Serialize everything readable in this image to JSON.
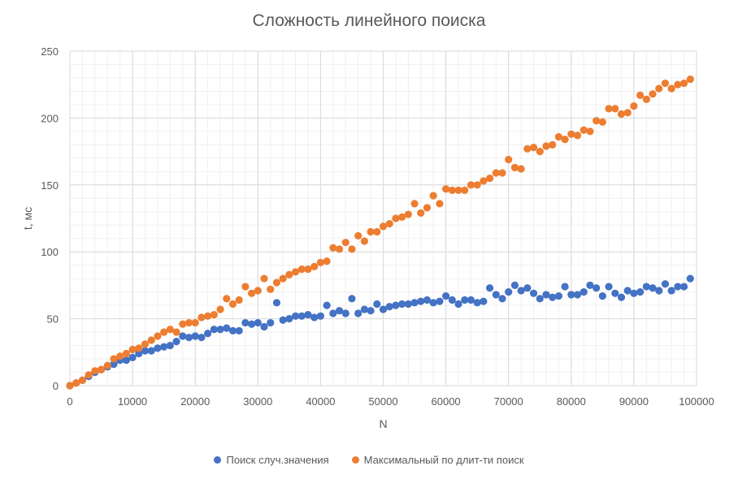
{
  "chart_data": {
    "type": "scatter",
    "title": "Сложность линейного поиска",
    "xlabel": "N",
    "ylabel": "t, мс",
    "xlim": [
      0,
      100000
    ],
    "ylim": [
      0,
      250
    ],
    "x_ticks": [
      "0",
      "10000",
      "20000",
      "30000",
      "40000",
      "50000",
      "60000",
      "70000",
      "80000",
      "90000",
      "100000"
    ],
    "y_ticks": [
      "0",
      "50",
      "100",
      "150",
      "200",
      "250"
    ],
    "grid": true,
    "legend_position": "bottom",
    "series": [
      {
        "name": "Поиск случ.значения",
        "color": "#4472C4",
        "x": [
          0,
          1000,
          2000,
          3000,
          4000,
          5000,
          6000,
          7000,
          8000,
          9000,
          10000,
          11000,
          12000,
          13000,
          14000,
          15000,
          16000,
          17000,
          18000,
          19000,
          20000,
          21000,
          22000,
          23000,
          24000,
          25000,
          26000,
          27000,
          28000,
          29000,
          30000,
          31000,
          32000,
          33000,
          34000,
          35000,
          36000,
          37000,
          38000,
          39000,
          40000,
          41000,
          42000,
          43000,
          44000,
          45000,
          46000,
          47000,
          48000,
          49000,
          50000,
          51000,
          52000,
          53000,
          54000,
          55000,
          56000,
          57000,
          58000,
          59000,
          60000,
          61000,
          62000,
          63000,
          64000,
          65000,
          66000,
          67000,
          68000,
          69000,
          70000,
          71000,
          72000,
          73000,
          74000,
          75000,
          76000,
          77000,
          78000,
          79000,
          80000,
          81000,
          82000,
          83000,
          84000,
          85000,
          86000,
          87000,
          88000,
          89000,
          90000,
          91000,
          92000,
          93000,
          94000,
          95000,
          96000,
          97000,
          98000,
          99000
        ],
        "y": [
          0,
          2,
          4,
          7,
          10,
          12,
          14,
          16,
          19,
          19,
          21,
          24,
          26,
          26,
          28,
          29,
          30,
          33,
          37,
          36,
          37,
          36,
          39,
          42,
          42,
          43,
          41,
          41,
          47,
          46,
          47,
          44,
          47,
          62,
          49,
          50,
          52,
          52,
          53,
          51,
          52,
          60,
          54,
          56,
          54,
          65,
          54,
          57,
          56,
          61,
          57,
          59,
          60,
          61,
          61,
          62,
          63,
          64,
          62,
          63,
          67,
          64,
          61,
          64,
          64,
          62,
          63,
          73,
          68,
          65,
          70,
          75,
          71,
          73,
          69,
          65,
          68,
          66,
          67,
          74,
          68,
          68,
          70,
          75,
          73,
          67,
          74,
          69,
          66,
          71,
          69,
          70,
          74,
          73,
          71,
          76,
          71,
          74,
          74,
          80
        ]
      },
      {
        "name": "Максимальный по длит-ти поиск",
        "color": "#ED7D31",
        "x": [
          0,
          1000,
          2000,
          3000,
          4000,
          5000,
          6000,
          7000,
          8000,
          9000,
          10000,
          11000,
          12000,
          13000,
          14000,
          15000,
          16000,
          17000,
          18000,
          19000,
          20000,
          21000,
          22000,
          23000,
          24000,
          25000,
          26000,
          27000,
          28000,
          29000,
          30000,
          31000,
          32000,
          33000,
          34000,
          35000,
          36000,
          37000,
          38000,
          39000,
          40000,
          41000,
          42000,
          43000,
          44000,
          45000,
          46000,
          47000,
          48000,
          49000,
          50000,
          51000,
          52000,
          53000,
          54000,
          55000,
          56000,
          57000,
          58000,
          59000,
          60000,
          61000,
          62000,
          63000,
          64000,
          65000,
          66000,
          67000,
          68000,
          69000,
          70000,
          71000,
          72000,
          73000,
          74000,
          75000,
          76000,
          77000,
          78000,
          79000,
          80000,
          81000,
          82000,
          83000,
          84000,
          85000,
          86000,
          87000,
          88000,
          89000,
          90000,
          91000,
          92000,
          93000,
          94000,
          95000,
          96000,
          97000,
          98000,
          99000
        ],
        "y": [
          0,
          2,
          4,
          8,
          11,
          12,
          15,
          20,
          22,
          24,
          27,
          28,
          31,
          34,
          37,
          40,
          42,
          40,
          46,
          47,
          47,
          51,
          52,
          53,
          57,
          65,
          61,
          64,
          74,
          69,
          71,
          80,
          72,
          77,
          80,
          83,
          85,
          87,
          87,
          89,
          92,
          93,
          103,
          102,
          107,
          102,
          112,
          108,
          115,
          115,
          119,
          121,
          125,
          126,
          128,
          136,
          129,
          133,
          142,
          136,
          147,
          146,
          146,
          146,
          150,
          150,
          153,
          155,
          159,
          159,
          169,
          163,
          162,
          177,
          178,
          175,
          179,
          180,
          186,
          184,
          188,
          187,
          191,
          190,
          198,
          197,
          207,
          207,
          203,
          204,
          209,
          217,
          214,
          218,
          222,
          226,
          222,
          225,
          226,
          229
        ]
      }
    ]
  }
}
